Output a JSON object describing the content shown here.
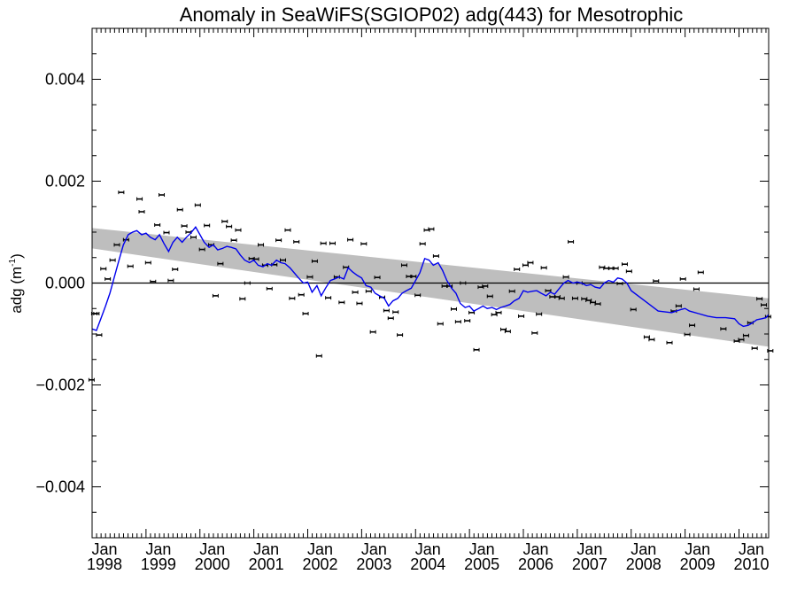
{
  "chart_data": {
    "type": "scatter",
    "title": "Anomaly in SeaWiFS(SGIOP02) adg(443) for Mesotrophic",
    "ylabel": "adg (m",
    "ylabel_unit_exponent": "-1",
    "ylabel_close": ")",
    "xlim": [
      1998.0,
      2010.55
    ],
    "ylim": [
      -0.005,
      0.005
    ],
    "yticks": [
      {
        "value": 0.004,
        "label": "0.004"
      },
      {
        "value": 0.002,
        "label": "0.002"
      },
      {
        "value": 0.0,
        "label": "0.000"
      },
      {
        "value": -0.002,
        "label": "−0.002"
      },
      {
        "value": -0.004,
        "label": "−0.004"
      }
    ],
    "xticks": [
      {
        "value": 1998,
        "month": "Jan",
        "year": "1998"
      },
      {
        "value": 1999,
        "month": "Jan",
        "year": "1999"
      },
      {
        "value": 2000,
        "month": "Jan",
        "year": "2000"
      },
      {
        "value": 2001,
        "month": "Jan",
        "year": "2001"
      },
      {
        "value": 2002,
        "month": "Jan",
        "year": "2002"
      },
      {
        "value": 2003,
        "month": "Jan",
        "year": "2003"
      },
      {
        "value": 2004,
        "month": "Jan",
        "year": "2004"
      },
      {
        "value": 2005,
        "month": "Jan",
        "year": "2005"
      },
      {
        "value": 2006,
        "month": "Jan",
        "year": "2006"
      },
      {
        "value": 2007,
        "month": "Jan",
        "year": "2007"
      },
      {
        "value": 2008,
        "month": "Jan",
        "year": "2008"
      },
      {
        "value": 2009,
        "month": "Jan",
        "year": "2009"
      },
      {
        "value": 2010,
        "month": "Jan",
        "year": "2010"
      }
    ],
    "zero_line": 0.0,
    "trend_band": {
      "x": [
        1998.0,
        2010.55
      ],
      "upper": [
        0.00108,
        -0.0003
      ],
      "lower": [
        0.00068,
        -0.00125
      ],
      "color": "#bebebe"
    },
    "series": [
      {
        "kind": "points_with_error_bars",
        "color": "#000000",
        "points": [
          [
            1997.99,
            -0.0019
          ],
          [
            1998.04,
            -0.0006
          ],
          [
            1998.08,
            -0.0006
          ],
          [
            1998.13,
            -0.00102
          ],
          [
            1998.21,
            0.00028
          ],
          [
            1998.29,
            8e-05
          ],
          [
            1998.38,
            0.00045
          ],
          [
            1998.46,
            0.00075
          ],
          [
            1998.54,
            0.00178
          ],
          [
            1998.63,
            0.00085
          ],
          [
            1998.71,
            0.00033
          ],
          [
            1998.88,
            0.00165
          ],
          [
            1998.92,
            0.0014
          ],
          [
            1999.04,
            0.0004
          ],
          [
            1999.13,
            3e-05
          ],
          [
            1999.21,
            0.00114
          ],
          [
            1999.29,
            0.00173
          ],
          [
            1999.38,
            0.00099
          ],
          [
            1999.46,
            5e-05
          ],
          [
            1999.54,
            0.00027
          ],
          [
            1999.63,
            0.00144
          ],
          [
            1999.71,
            0.00112
          ],
          [
            1999.79,
            0.001
          ],
          [
            1999.88,
            0.0009
          ],
          [
            1999.96,
            0.00153
          ],
          [
            2000.04,
            0.00066
          ],
          [
            2000.13,
            0.00113
          ],
          [
            2000.21,
            0.00075
          ],
          [
            2000.29,
            -0.00025
          ],
          [
            2000.38,
            0.00038
          ],
          [
            2000.46,
            0.00121
          ],
          [
            2000.54,
            0.00111
          ],
          [
            2000.63,
            0.00084
          ],
          [
            2000.71,
            0.00104
          ],
          [
            2000.79,
            -0.00031
          ],
          [
            2000.88,
            0.0
          ],
          [
            2000.96,
            0.00048
          ],
          [
            2001.04,
            0.00047
          ],
          [
            2001.13,
            0.00075
          ],
          [
            2001.21,
            0.00035
          ],
          [
            2001.29,
            -0.00011
          ],
          [
            2001.38,
            0.00036
          ],
          [
            2001.46,
            0.00084
          ],
          [
            2001.54,
            0.00045
          ],
          [
            2001.63,
            0.00104
          ],
          [
            2001.71,
            -0.0003
          ],
          [
            2001.79,
            0.00081
          ],
          [
            2001.88,
            -0.00023
          ],
          [
            2001.96,
            -0.0006
          ],
          [
            2002.04,
            0.00012
          ],
          [
            2002.13,
            0.00043
          ],
          [
            2002.21,
            -0.00143
          ],
          [
            2002.29,
            0.00078
          ],
          [
            2002.38,
            -0.00029
          ],
          [
            2002.46,
            0.00078
          ],
          [
            2002.54,
            0.00012
          ],
          [
            2002.63,
            -0.00038
          ],
          [
            2002.71,
            0.00031
          ],
          [
            2002.79,
            0.00085
          ],
          [
            2002.88,
            -0.00018
          ],
          [
            2002.96,
            -0.0004
          ],
          [
            2003.04,
            0.00077
          ],
          [
            2003.13,
            -0.00016
          ],
          [
            2003.21,
            -0.00096
          ],
          [
            2003.29,
            0.00011
          ],
          [
            2003.38,
            -0.00028
          ],
          [
            2003.46,
            -0.00054
          ],
          [
            2003.54,
            -0.00069
          ],
          [
            2003.63,
            -0.00057
          ],
          [
            2003.71,
            -0.00102
          ],
          [
            2003.79,
            0.00035
          ],
          [
            2003.88,
            0.00013
          ],
          [
            2003.96,
            0.00013
          ],
          [
            2004.04,
            -0.00024
          ],
          [
            2004.13,
            0.00077
          ],
          [
            2004.21,
            0.00104
          ],
          [
            2004.29,
            0.00106
          ],
          [
            2004.38,
            0.00053
          ],
          [
            2004.46,
            -0.0008
          ],
          [
            2004.54,
            -6e-05
          ],
          [
            2004.63,
            -6e-05
          ],
          [
            2004.71,
            -0.00051
          ],
          [
            2004.79,
            -0.00076
          ],
          [
            2004.88,
            0.0
          ],
          [
            2004.96,
            -0.00074
          ],
          [
            2005.04,
            -0.00058
          ],
          [
            2005.13,
            -0.00131
          ],
          [
            2005.21,
            -8e-05
          ],
          [
            2005.29,
            -6e-05
          ],
          [
            2005.38,
            -0.00026
          ],
          [
            2005.46,
            -0.00062
          ],
          [
            2005.54,
            -0.00058
          ],
          [
            2005.63,
            -0.00091
          ],
          [
            2005.71,
            -0.00095
          ],
          [
            2005.79,
            -0.00016
          ],
          [
            2005.88,
            0.00027
          ],
          [
            2005.96,
            -0.00065
          ],
          [
            2006.04,
            0.00035
          ],
          [
            2006.13,
            0.0004
          ],
          [
            2006.21,
            -0.00098
          ],
          [
            2006.29,
            -0.00061
          ],
          [
            2006.38,
            0.0003
          ],
          [
            2006.46,
            -0.00015
          ],
          [
            2006.54,
            -0.00027
          ],
          [
            2006.63,
            -0.00027
          ],
          [
            2006.71,
            -0.0003
          ],
          [
            2006.79,
            0.00012
          ],
          [
            2006.88,
            0.00081
          ],
          [
            2006.96,
            -0.0003
          ],
          [
            2007.04,
            0.0
          ],
          [
            2007.13,
            -0.00031
          ],
          [
            2007.21,
            -0.00034
          ],
          [
            2007.29,
            -0.00038
          ],
          [
            2007.38,
            -0.00041
          ],
          [
            2007.46,
            0.00031
          ],
          [
            2007.54,
            0.00029
          ],
          [
            2007.63,
            0.00029
          ],
          [
            2007.71,
            0.00029
          ],
          [
            2007.79,
            -1e-05
          ],
          [
            2007.88,
            0.00037
          ],
          [
            2007.96,
            0.00023
          ],
          [
            2008.04,
            -0.00052
          ],
          [
            2008.29,
            -0.00106
          ],
          [
            2008.38,
            -0.00111
          ],
          [
            2008.46,
            4e-05
          ],
          [
            2008.71,
            -0.00117
          ],
          [
            2008.79,
            -0.00055
          ],
          [
            2008.88,
            -0.00045
          ],
          [
            2008.96,
            8e-05
          ],
          [
            2009.04,
            -0.00101
          ],
          [
            2009.13,
            -0.00083
          ],
          [
            2009.21,
            -0.00012
          ],
          [
            2009.29,
            0.00021
          ],
          [
            2009.71,
            -0.0009
          ],
          [
            2009.96,
            -0.00114
          ],
          [
            2010.04,
            -0.00111
          ],
          [
            2010.13,
            -0.00103
          ],
          [
            2010.21,
            -0.00078
          ],
          [
            2010.29,
            -0.00128
          ],
          [
            2010.38,
            -0.00031
          ],
          [
            2010.46,
            -0.00043
          ],
          [
            2010.54,
            -0.00066
          ],
          [
            2010.58,
            -0.00133
          ]
        ]
      },
      {
        "kind": "smoothed_line",
        "color": "#0000ee",
        "x": [
          1998.0,
          1998.08,
          1998.17,
          1998.25,
          1998.33,
          1998.42,
          1998.5,
          1998.58,
          1998.67,
          1998.75,
          1998.83,
          1998.92,
          1999.0,
          1999.08,
          1999.17,
          1999.25,
          1999.33,
          1999.42,
          1999.5,
          1999.58,
          1999.67,
          1999.75,
          1999.83,
          1999.92,
          2000.0,
          2000.08,
          2000.17,
          2000.25,
          2000.33,
          2000.42,
          2000.5,
          2000.58,
          2000.67,
          2000.75,
          2000.83,
          2000.92,
          2001.0,
          2001.08,
          2001.17,
          2001.25,
          2001.33,
          2001.42,
          2001.5,
          2001.58,
          2001.67,
          2001.75,
          2001.83,
          2001.92,
          2002.0,
          2002.08,
          2002.17,
          2002.25,
          2002.33,
          2002.42,
          2002.5,
          2002.58,
          2002.67,
          2002.75,
          2002.83,
          2002.92,
          2003.0,
          2003.08,
          2003.17,
          2003.25,
          2003.33,
          2003.42,
          2003.5,
          2003.58,
          2003.67,
          2003.75,
          2003.83,
          2003.92,
          2004.0,
          2004.08,
          2004.17,
          2004.25,
          2004.33,
          2004.42,
          2004.5,
          2004.58,
          2004.67,
          2004.75,
          2004.83,
          2004.92,
          2005.0,
          2005.08,
          2005.17,
          2005.25,
          2005.33,
          2005.42,
          2005.5,
          2005.58,
          2005.67,
          2005.75,
          2005.83,
          2005.92,
          2006.0,
          2006.08,
          2006.17,
          2006.25,
          2006.33,
          2006.42,
          2006.5,
          2006.58,
          2006.67,
          2006.75,
          2006.83,
          2006.92,
          2007.0,
          2007.08,
          2007.17,
          2007.25,
          2007.33,
          2007.42,
          2007.5,
          2007.58,
          2007.67,
          2007.75,
          2007.83,
          2007.92,
          2008.0,
          2008.25,
          2008.5,
          2008.75,
          2008.92,
          2009.0,
          2009.08,
          2009.25,
          2009.42,
          2009.58,
          2009.75,
          2009.92,
          2010.0,
          2010.08,
          2010.17,
          2010.25,
          2010.33,
          2010.42,
          2010.5,
          2010.55
        ],
        "y": [
          -0.0009,
          -0.00093,
          -0.00068,
          -0.00045,
          -0.0002,
          0.00015,
          0.00045,
          0.00075,
          0.00095,
          0.001,
          0.00103,
          0.00095,
          0.00098,
          0.0009,
          0.00085,
          0.00095,
          0.00078,
          0.00062,
          0.0008,
          0.0009,
          0.0008,
          0.0009,
          0.00098,
          0.0011,
          0.00095,
          0.0008,
          0.0007,
          0.00075,
          0.00065,
          0.00068,
          0.00072,
          0.0007,
          0.00067,
          0.00055,
          0.00045,
          0.0004,
          0.00045,
          0.00035,
          0.00032,
          0.00038,
          0.00035,
          0.00045,
          0.0004,
          0.00038,
          0.0003,
          0.0002,
          0.0001,
          0.0,
          2e-05,
          -0.00018,
          -5e-05,
          -0.00025,
          -0.0001,
          5e-05,
          8e-05,
          0.00012,
          8e-05,
          0.0003,
          0.00022,
          0.00015,
          0.0001,
          -5e-05,
          -8e-05,
          -0.0002,
          -0.00025,
          -0.0003,
          -0.00045,
          -0.00035,
          -0.0003,
          -0.0002,
          -0.00015,
          -0.0001,
          5e-05,
          0.0002,
          0.00048,
          0.00045,
          0.00035,
          0.0004,
          0.00025,
          5e-05,
          -0.0001,
          -0.0002,
          -0.0004,
          -0.00048,
          -0.00045,
          -0.00055,
          -0.0005,
          -0.00045,
          -0.0005,
          -0.00048,
          -0.00052,
          -0.00048,
          -0.00045,
          -0.00042,
          -0.00035,
          -0.0003,
          -0.00015,
          -0.00018,
          -0.00016,
          -0.00015,
          -0.0002,
          -0.00025,
          -0.00018,
          -0.00022,
          -0.0001,
          0.0,
          5e-05,
          0.0,
          2e-05,
          0.0,
          -5e-05,
          -3e-05,
          -8e-05,
          -0.0001,
          0.0,
          5e-05,
          2e-05,
          0.0001,
          8e-05,
          0.0,
          -0.00015,
          -0.00035,
          -0.00055,
          -0.00058,
          -0.00052,
          -0.0005,
          -0.00055,
          -0.0006,
          -0.00065,
          -0.00068,
          -0.00068,
          -0.0007,
          -0.0008,
          -0.00085,
          -0.00083,
          -0.00078,
          -0.00072,
          -0.0007,
          -0.00068,
          -0.00062
        ]
      }
    ]
  }
}
